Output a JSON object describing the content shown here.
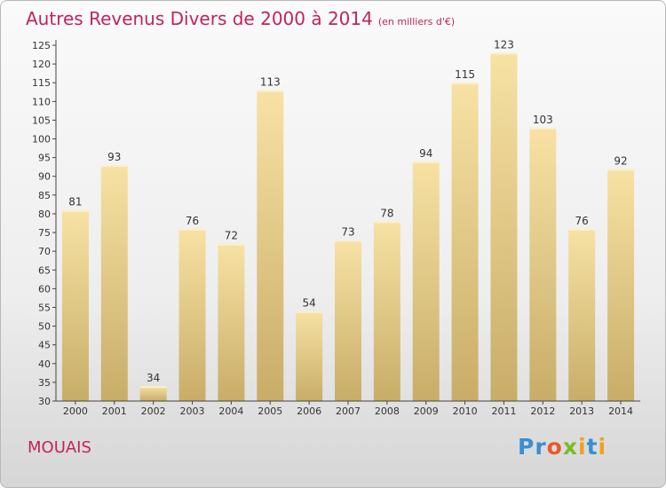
{
  "title": "Autres Revenus Divers de 2000 à 2014",
  "unit_note": "(en milliers d'€)",
  "place_name": "MOUAIS",
  "logo": {
    "text": "Proxiti",
    "letters": [
      "P",
      "r",
      "o",
      "x",
      "i",
      "t",
      "i"
    ],
    "colors": [
      "#3a8fd0",
      "#3a8fd0",
      "#e85a2a",
      "#7cb928",
      "#f0a020",
      "#3a8fd0",
      "#f0a020"
    ]
  },
  "colors": {
    "title": "#c0245e",
    "bar_top": "#f7e2a4",
    "bar_bottom": "#c8ad68",
    "axis": "#444444"
  },
  "chart_data": {
    "type": "bar",
    "categories": [
      "2000",
      "2001",
      "2002",
      "2003",
      "2004",
      "2005",
      "2006",
      "2007",
      "2008",
      "2009",
      "2010",
      "2011",
      "2012",
      "2013",
      "2014"
    ],
    "values": [
      81,
      93,
      34,
      76,
      72,
      113,
      54,
      73,
      78,
      94,
      115,
      123,
      103,
      76,
      92
    ],
    "ylim": [
      30,
      125
    ],
    "yticks": [
      30,
      35,
      40,
      45,
      50,
      55,
      60,
      65,
      70,
      75,
      80,
      85,
      90,
      95,
      100,
      105,
      110,
      115,
      120,
      125
    ],
    "grid": false,
    "legend": "none"
  }
}
